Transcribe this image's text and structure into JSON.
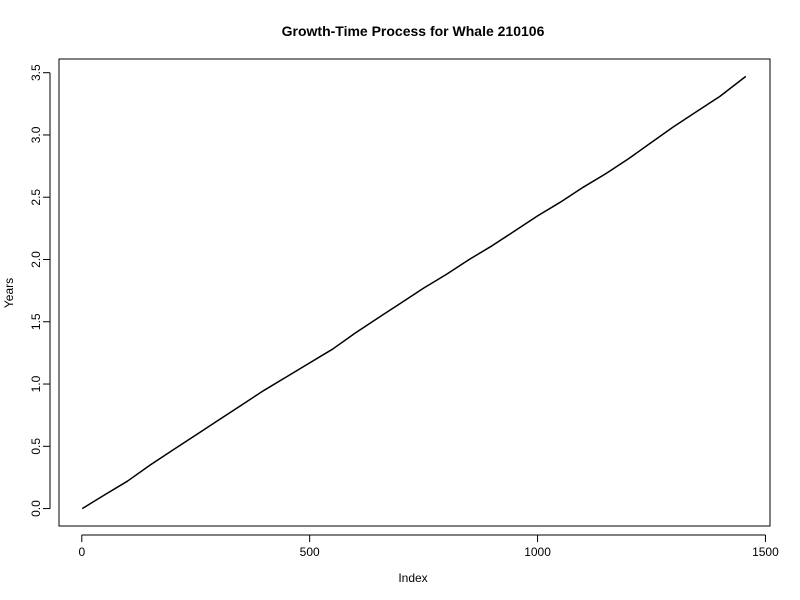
{
  "chart_data": {
    "type": "line",
    "title": "Growth-Time Process for Whale 210106",
    "xlabel": "Index",
    "ylabel": "Years",
    "xlim": [
      -50,
      1510
    ],
    "ylim": [
      -0.14,
      3.61
    ],
    "x_ticks": [
      0,
      500,
      1000,
      1500
    ],
    "x_tick_labels": [
      "0",
      "500",
      "1000",
      "1500"
    ],
    "y_ticks": [
      0,
      0.5,
      1,
      1.5,
      2,
      2.5,
      3,
      3.5
    ],
    "y_tick_labels": [
      "0.0",
      "0.5",
      "1.0",
      "1.5",
      "2.0",
      "2.5",
      "3.0",
      "3.5"
    ],
    "grid": false,
    "series": [
      {
        "color": "#000000",
        "x": [
          1,
          50,
          100,
          150,
          200,
          250,
          300,
          350,
          400,
          450,
          500,
          550,
          600,
          650,
          700,
          750,
          800,
          850,
          900,
          950,
          1000,
          1050,
          1100,
          1150,
          1200,
          1250,
          1300,
          1350,
          1400,
          1457
        ],
        "y": [
          0.0,
          0.11,
          0.22,
          0.35,
          0.47,
          0.59,
          0.71,
          0.83,
          0.95,
          1.06,
          1.17,
          1.28,
          1.41,
          1.53,
          1.65,
          1.77,
          1.88,
          2.0,
          2.11,
          2.23,
          2.35,
          2.46,
          2.58,
          2.69,
          2.81,
          2.94,
          3.07,
          3.19,
          3.31,
          3.47
        ]
      }
    ]
  }
}
